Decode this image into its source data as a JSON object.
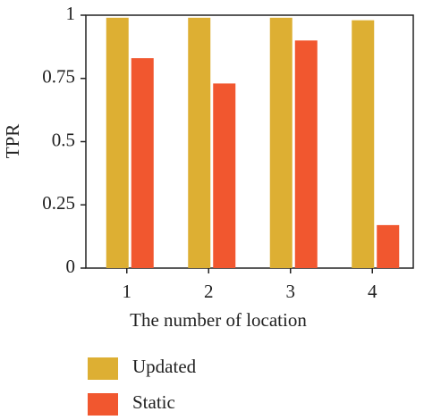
{
  "chart_data": {
    "type": "bar",
    "x_label": "The number of location",
    "y_label": "TPR",
    "categories": [
      "1",
      "2",
      "3",
      "4"
    ],
    "series": [
      {
        "name": "Updated",
        "color": "#ddaf33",
        "values": [
          0.99,
          0.99,
          0.99,
          0.98
        ]
      },
      {
        "name": "Static",
        "color": "#f1572f",
        "values": [
          0.83,
          0.73,
          0.9,
          0.17
        ]
      }
    ],
    "ylim": [
      0,
      1
    ],
    "yticks": [
      0,
      0.25,
      0.5,
      0.75,
      1
    ],
    "grid": false,
    "legend": "bottom"
  }
}
